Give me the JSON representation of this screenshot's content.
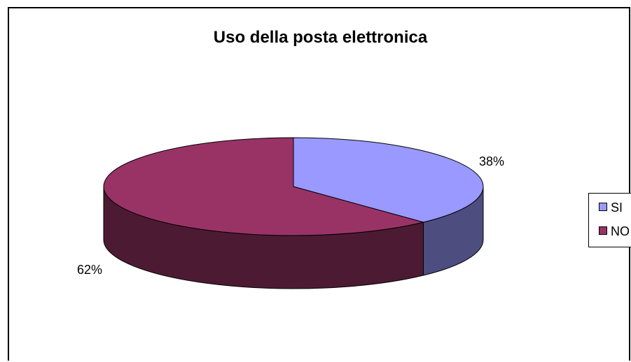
{
  "chart_data": {
    "type": "pie",
    "title": "Uso della posta elettronica",
    "categories": [
      "SI",
      "NO"
    ],
    "values": [
      38,
      62
    ],
    "data_labels": [
      "38%",
      "62%"
    ],
    "colors": {
      "SI": {
        "top": "#9999FF",
        "side": "#4D4D80"
      },
      "NO": {
        "top": "#993366",
        "side": "#4D1A33"
      }
    },
    "three_d": true,
    "legend": "right"
  }
}
